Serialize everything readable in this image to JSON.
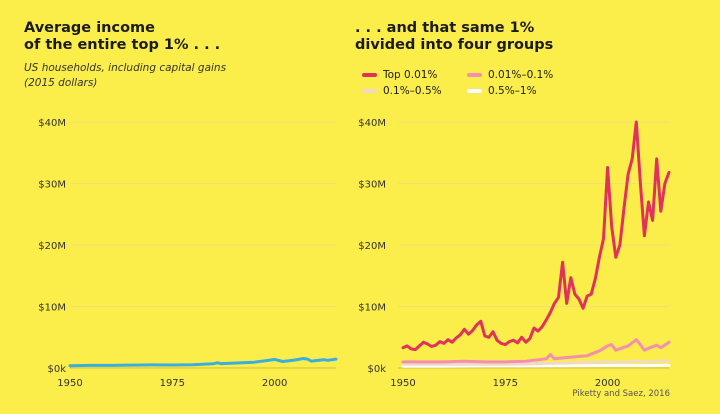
{
  "left_panel": {
    "title": "Average income\nof the entire top 1% . . .",
    "subtitle": "US households, including capital gains\n(2015 dollars)"
  },
  "right_panel": {
    "title": ". . . and that same 1%\ndivided into four groups"
  },
  "source": "Piketty and Saez, 2016",
  "chart_data": [
    {
      "type": "line",
      "title": "Average income of the entire top 1% . . .",
      "subtitle": "US households, including capital gains (2015 dollars)",
      "xlim": [
        1950,
        2015
      ],
      "ylim": [
        0,
        40000000
      ],
      "x_ticks": [
        1950,
        1975,
        2000
      ],
      "y_ticks": [
        0,
        10000000,
        20000000,
        30000000,
        40000000
      ],
      "y_tick_labels": [
        "$0k",
        "$10M",
        "$20M",
        "$30M",
        "$40M"
      ],
      "grid": "horizontal",
      "series": [
        {
          "color": "#3aaee0",
          "x": [
            1950,
            1955,
            1960,
            1965,
            1970,
            1975,
            1980,
            1985,
            1986,
            1987,
            1990,
            1995,
            1998,
            2000,
            2002,
            2005,
            2007,
            2008,
            2009,
            2010,
            2012,
            2013,
            2015
          ],
          "y": [
            380000,
            420000,
            430000,
            470000,
            500000,
            480000,
            540000,
            700000,
            850000,
            720000,
            800000,
            950000,
            1200000,
            1400000,
            1050000,
            1300000,
            1550000,
            1450000,
            1100000,
            1200000,
            1350000,
            1250000,
            1450000
          ]
        }
      ]
    },
    {
      "type": "line",
      "title": ". . . and that same 1% divided into four groups",
      "xlim": [
        1950,
        2015
      ],
      "ylim": [
        0,
        40000000
      ],
      "x_ticks": [
        1950,
        1975,
        2000
      ],
      "y_ticks": [
        0,
        10000000,
        20000000,
        30000000,
        40000000
      ],
      "y_tick_labels": [
        "$0k",
        "$10M",
        "$20M",
        "$30M",
        "$40M"
      ],
      "grid": "horizontal",
      "legend_position": "top",
      "series": [
        {
          "name": "Top 0.01%",
          "color": "#e0325a",
          "x": [
            1950,
            1951,
            1952,
            1953,
            1954,
            1955,
            1956,
            1957,
            1958,
            1959,
            1960,
            1961,
            1962,
            1963,
            1964,
            1965,
            1966,
            1967,
            1968,
            1969,
            1970,
            1971,
            1972,
            1973,
            1974,
            1975,
            1976,
            1977,
            1978,
            1979,
            1980,
            1981,
            1982,
            1983,
            1984,
            1985,
            1986,
            1987,
            1988,
            1989,
            1990,
            1991,
            1992,
            1993,
            1994,
            1995,
            1996,
            1997,
            1998,
            1999,
            2000,
            2001,
            2002,
            2003,
            2004,
            2005,
            2006,
            2007,
            2008,
            2009,
            2010,
            2011,
            2012,
            2013,
            2014,
            2015
          ],
          "y": [
            3300000,
            3600000,
            3100000,
            3000000,
            3600000,
            4200000,
            3900000,
            3500000,
            3700000,
            4300000,
            4000000,
            4600000,
            4200000,
            4900000,
            5400000,
            6300000,
            5500000,
            6100000,
            7000000,
            7600000,
            5200000,
            5000000,
            5900000,
            4500000,
            4000000,
            3800000,
            4300000,
            4500000,
            4100000,
            5000000,
            4200000,
            4800000,
            6500000,
            6000000,
            6700000,
            7800000,
            9000000,
            10500000,
            11500000,
            17200000,
            10500000,
            14700000,
            12000000,
            11200000,
            9700000,
            11700000,
            12000000,
            14500000,
            18000000,
            21000000,
            32600000,
            23000000,
            18000000,
            20000000,
            26000000,
            31500000,
            34000000,
            40000000,
            30000000,
            21500000,
            27000000,
            24000000,
            34000000,
            25500000,
            30000000,
            31800000
          ]
        },
        {
          "name": "0.01%–0.1%",
          "color": "#f48fb0",
          "x": [
            1950,
            1955,
            1960,
            1965,
            1970,
            1975,
            1980,
            1985,
            1986,
            1987,
            1990,
            1995,
            1998,
            2000,
            2001,
            2002,
            2005,
            2007,
            2008,
            2009,
            2010,
            2012,
            2013,
            2015
          ],
          "y": [
            1000000,
            1000000,
            1000000,
            1100000,
            1000000,
            1000000,
            1100000,
            1500000,
            2200000,
            1500000,
            1700000,
            2000000,
            2800000,
            3600000,
            3800000,
            2900000,
            3600000,
            4600000,
            3800000,
            2900000,
            3200000,
            3700000,
            3300000,
            4200000
          ]
        },
        {
          "name": "0.1%–0.5%",
          "color": "#f2d9c4",
          "x": [
            1950,
            1960,
            1970,
            1975,
            1980,
            1985,
            1990,
            1995,
            2000,
            2002,
            2005,
            2007,
            2009,
            2012,
            2015
          ],
          "y": [
            600000,
            620000,
            600000,
            600000,
            650000,
            750000,
            800000,
            900000,
            1050000,
            900000,
            1000000,
            1150000,
            950000,
            1100000,
            1200000
          ]
        },
        {
          "name": "0.5%–1%",
          "color": "#ffffff",
          "x": [
            1950,
            1960,
            1970,
            1980,
            1990,
            2000,
            2007,
            2009,
            2015
          ],
          "y": [
            300000,
            300000,
            320000,
            320000,
            350000,
            400000,
            430000,
            390000,
            430000
          ]
        }
      ]
    }
  ]
}
